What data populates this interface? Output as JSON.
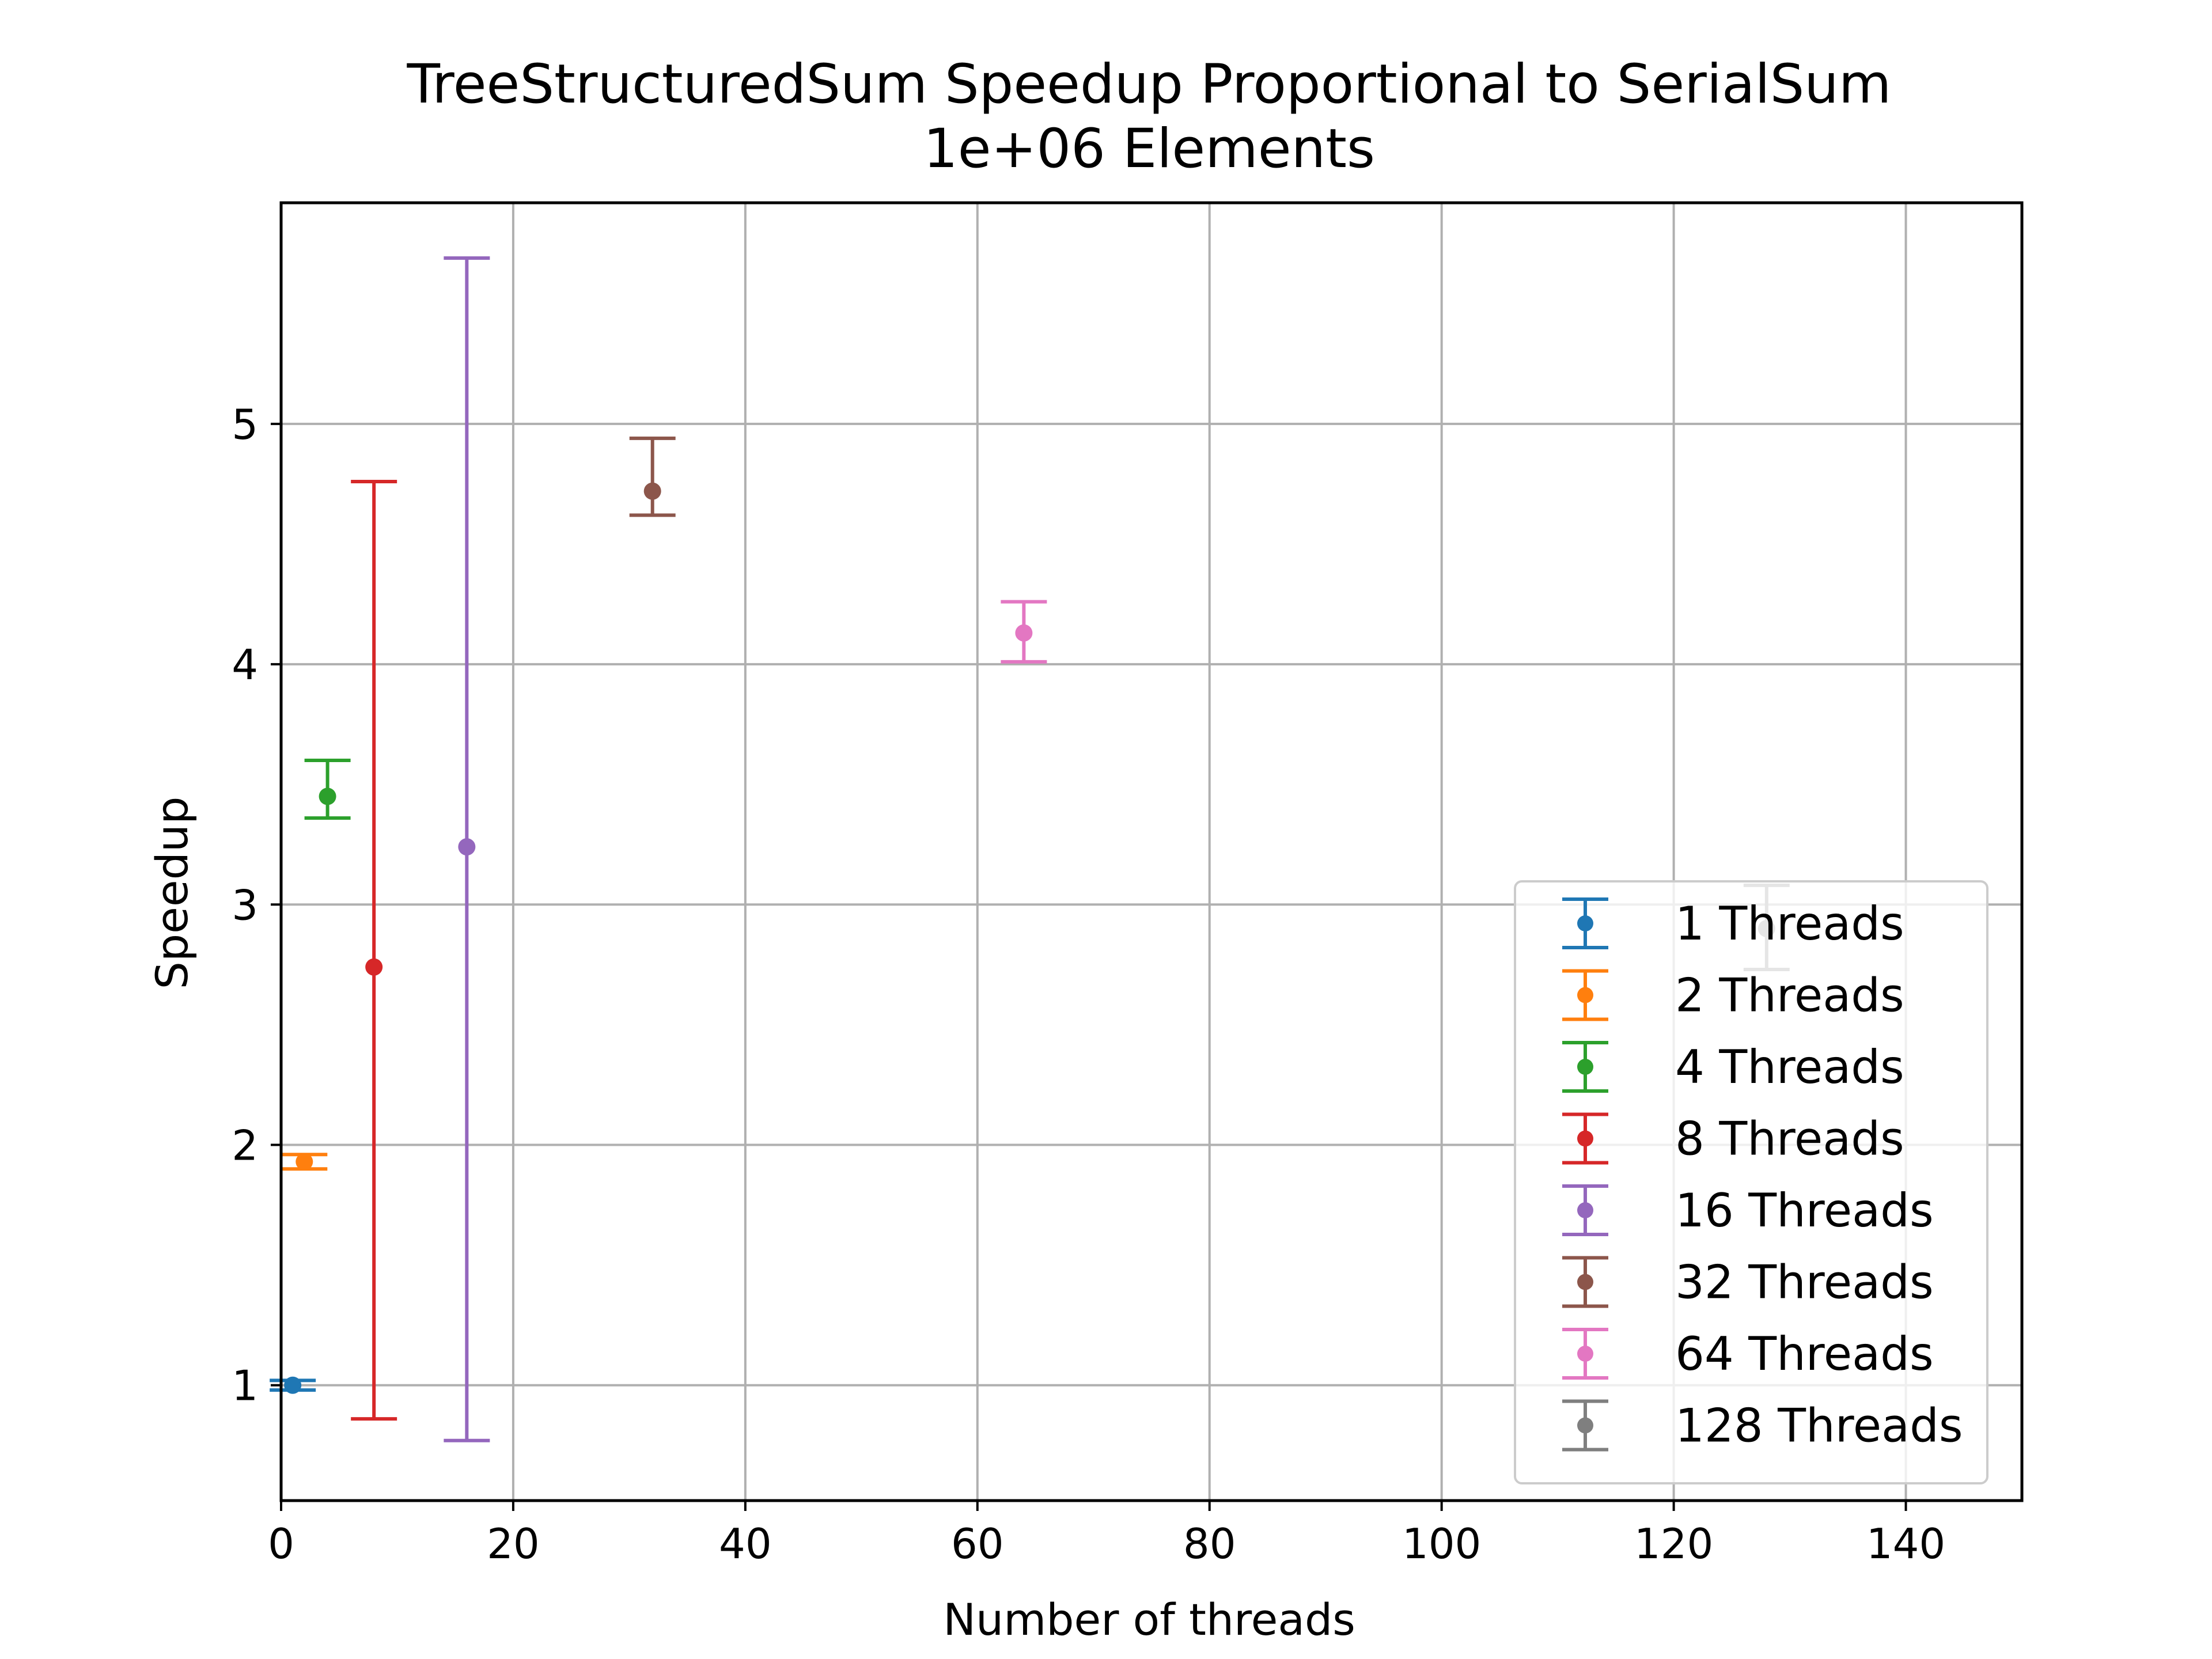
{
  "chart_data": {
    "type": "scatter",
    "title": "TreeStructuredSum Speedup Proportional to SerialSum",
    "subtitle": "1e+06 Elements",
    "xlabel": "Number of threads",
    "ylabel": "Speedup",
    "xlim": [
      0,
      150
    ],
    "ylim": [
      0.52,
      5.92
    ],
    "xticks": [
      0,
      20,
      40,
      60,
      80,
      100,
      120,
      140
    ],
    "yticks": [
      1,
      2,
      3,
      4,
      5
    ],
    "grid": true,
    "legend_position": "lower-right",
    "series": [
      {
        "name": "1 Threads",
        "color": "#1f77b4",
        "x": 1,
        "y": 1.0,
        "yerr_low": 0.98,
        "yerr_high": 1.02
      },
      {
        "name": "2 Threads",
        "color": "#ff7f0e",
        "x": 2,
        "y": 1.93,
        "yerr_low": 1.9,
        "yerr_high": 1.96
      },
      {
        "name": "4 Threads",
        "color": "#2ca02c",
        "x": 4,
        "y": 3.45,
        "yerr_low": 3.36,
        "yerr_high": 3.6
      },
      {
        "name": "8 Threads",
        "color": "#d62728",
        "x": 8,
        "y": 2.74,
        "yerr_low": 0.86,
        "yerr_high": 4.76
      },
      {
        "name": "16 Threads",
        "color": "#9467bd",
        "x": 16,
        "y": 3.24,
        "yerr_low": 0.77,
        "yerr_high": 5.69
      },
      {
        "name": "32 Threads",
        "color": "#8c564b",
        "x": 32,
        "y": 4.72,
        "yerr_low": 4.62,
        "yerr_high": 4.94
      },
      {
        "name": "64 Threads",
        "color": "#e377c2",
        "x": 64,
        "y": 4.13,
        "yerr_low": 4.01,
        "yerr_high": 4.26
      },
      {
        "name": "128 Threads",
        "color": "#7f7f7f",
        "x": 128,
        "y": 2.9,
        "yerr_low": 2.73,
        "yerr_high": 3.08
      }
    ]
  }
}
